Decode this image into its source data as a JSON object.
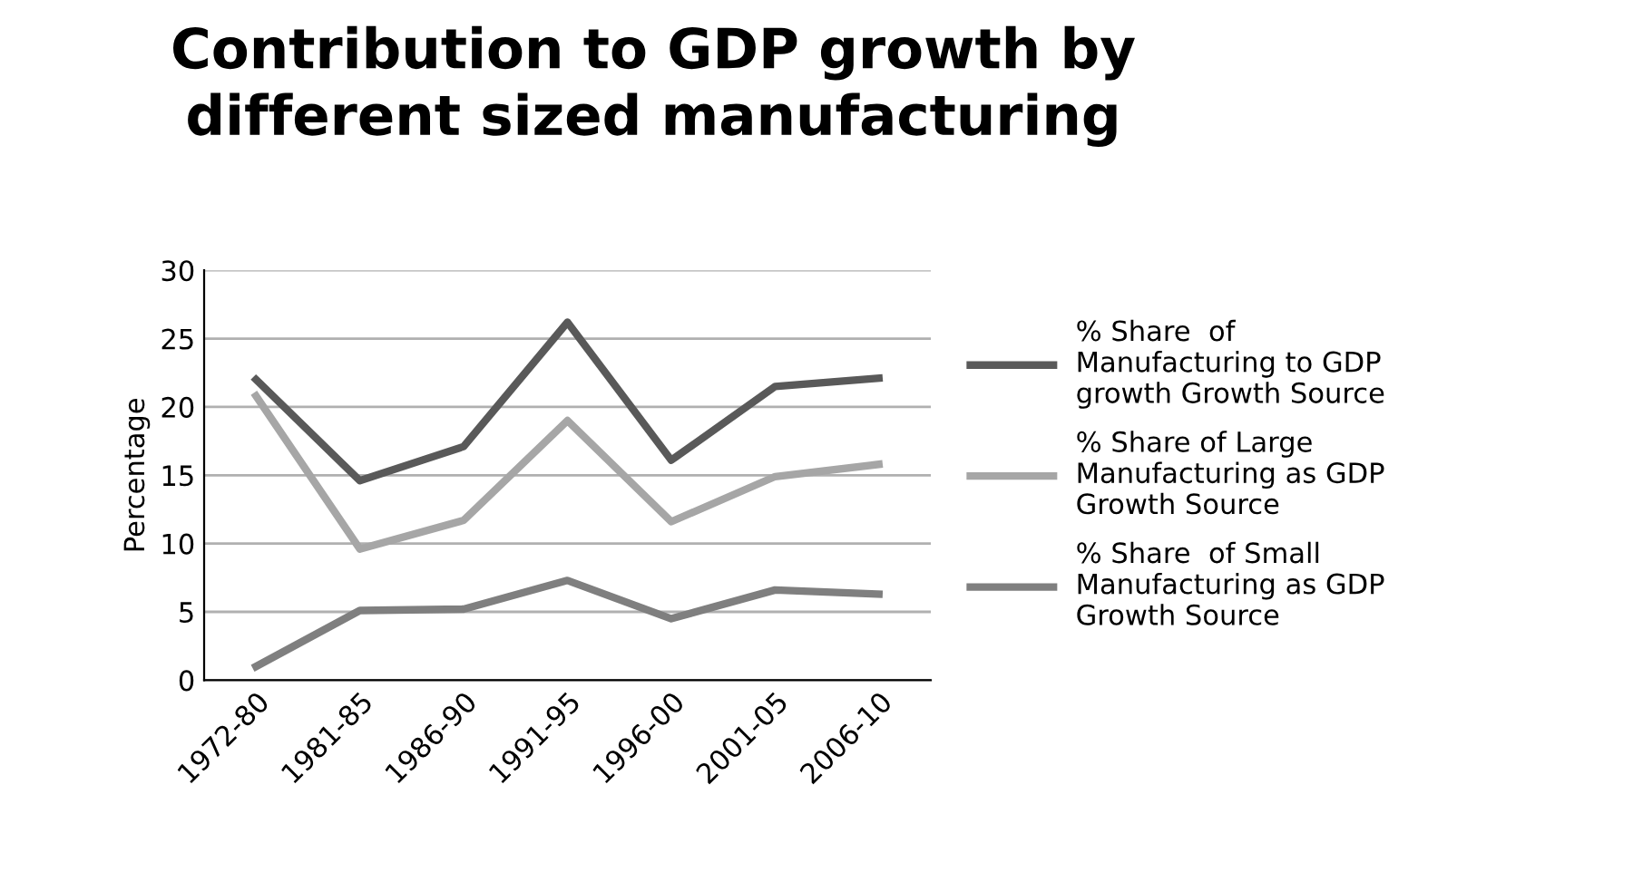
{
  "chart_data": {
    "type": "line",
    "title": "Contribution to GDP growth by\ndifferent sized manufacturing",
    "ylabel": "Percentage",
    "categories": [
      "1972-80",
      "1981-85",
      "1986-90",
      "1991-95",
      "1996-00",
      "2001-05",
      "2006-10"
    ],
    "series": [
      {
        "name": "% Share  of\nManufacturing to GDP\ngrowth Growth Source",
        "color": "#595959",
        "values": [
          22.0,
          14.6,
          17.1,
          26.2,
          16.1,
          21.5,
          22.1
        ]
      },
      {
        "name": "% Share of Large\nManufacturing as GDP\nGrowth Source",
        "color": "#a6a6a6",
        "values": [
          20.8,
          9.6,
          11.7,
          19.0,
          11.6,
          14.9,
          15.8
        ]
      },
      {
        "name": "% Share  of Small\nManufacturing as GDP\nGrowth Source",
        "color": "#7f7f7f",
        "values": [
          1.0,
          5.1,
          5.2,
          7.3,
          4.5,
          6.6,
          6.3
        ]
      }
    ],
    "ylim": [
      0,
      30
    ],
    "yticks": [
      0,
      5,
      10,
      15,
      20,
      25,
      30
    ],
    "grid": "y",
    "legend": "right",
    "marker": "none",
    "line_style": "solid"
  }
}
